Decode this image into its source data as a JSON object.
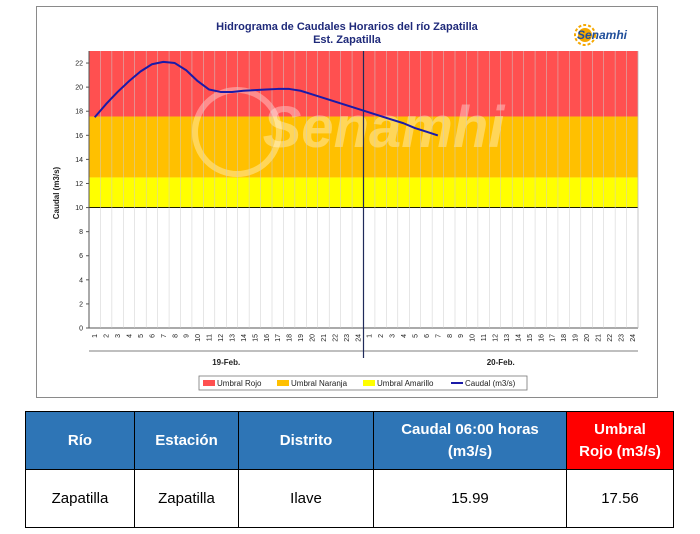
{
  "chart_data": {
    "type": "line",
    "title": "Hidrograma de Caudales Horarios del río Zapatilla",
    "subtitle": "Est. Zapatilla",
    "ylabel": "Caudal (m3/s)",
    "ylim": [
      0,
      23
    ],
    "yticks": [
      0,
      2,
      4,
      6,
      8,
      10,
      12,
      14,
      16,
      18,
      20,
      22
    ],
    "x_tick_labels": [
      "1",
      "2",
      "3",
      "4",
      "5",
      "6",
      "7",
      "8",
      "9",
      "10",
      "11",
      "12",
      "13",
      "14",
      "15",
      "16",
      "17",
      "18",
      "19",
      "20",
      "21",
      "22",
      "23",
      "24",
      "1",
      "2",
      "3",
      "4",
      "5",
      "6",
      "7",
      "8",
      "9",
      "10",
      "11",
      "12",
      "13",
      "14",
      "15",
      "16",
      "17",
      "18",
      "19",
      "20",
      "21",
      "22",
      "23",
      "24"
    ],
    "days": [
      "19-Feb.",
      "20-Feb."
    ],
    "bands": [
      {
        "name": "Umbral Rojo",
        "from": 17.56,
        "to": 23,
        "color": "#ff5050"
      },
      {
        "name": "Umbral Naranja",
        "from": 12.5,
        "to": 17.56,
        "color": "#ffc000"
      },
      {
        "name": "Umbral Amarillo",
        "from": 10,
        "to": 12.5,
        "color": "#ffff00"
      }
    ],
    "series": [
      {
        "name": "Caudal (m3/s)",
        "color": "#1a1aa8",
        "points": [
          [
            1,
            17.5
          ],
          [
            2,
            18.6
          ],
          [
            3,
            19.6
          ],
          [
            4,
            20.5
          ],
          [
            5,
            21.3
          ],
          [
            6,
            21.9
          ],
          [
            7,
            22.1
          ],
          [
            8,
            22.0
          ],
          [
            9,
            21.4
          ],
          [
            10,
            20.5
          ],
          [
            11,
            19.8
          ],
          [
            12,
            19.6
          ],
          [
            13,
            19.6
          ],
          [
            14,
            19.7
          ],
          [
            15,
            19.75
          ],
          [
            16,
            19.8
          ],
          [
            17,
            19.85
          ],
          [
            18,
            19.85
          ],
          [
            19,
            19.7
          ],
          [
            20,
            19.4
          ],
          [
            21,
            19.1
          ],
          [
            22,
            18.8
          ],
          [
            23,
            18.5
          ],
          [
            24,
            18.2
          ],
          [
            25,
            17.9
          ],
          [
            26,
            17.6
          ],
          [
            27,
            17.3
          ],
          [
            28,
            17.0
          ],
          [
            29,
            16.6
          ],
          [
            30,
            16.3
          ],
          [
            31,
            15.99
          ]
        ]
      }
    ],
    "vertical_marker_x": 24.5,
    "legend": [
      "Umbral Rojo",
      "Umbral Naranja",
      "Umbral Amarillo",
      "Caudal (m3/s)"
    ],
    "legend_placement": "bottom",
    "watermark": "Senamhi"
  },
  "logo": {
    "text": "Senamhi"
  },
  "table": {
    "headers": {
      "rio": "Río",
      "estacion": "Estación",
      "distrito": "Distrito",
      "caudal_line1": "Caudal  06:00 horas",
      "caudal_line2": "(m3/s)",
      "umbral_line1": "Umbral",
      "umbral_line2": "Rojo (m3/s)"
    },
    "row": {
      "rio": "Zapatilla",
      "estacion": "Zapatilla",
      "distrito": "Ilave",
      "caudal": "15.99",
      "umbral": "17.56"
    }
  }
}
